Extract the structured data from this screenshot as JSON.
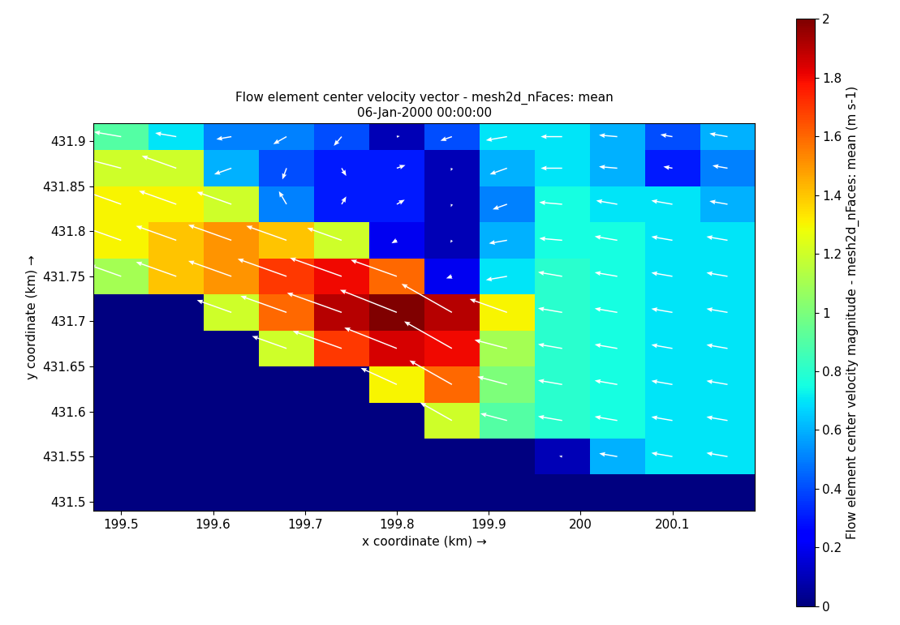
{
  "chart_data": {
    "type": "heatmap",
    "title": "Flow element center velocity vector - mesh2d_nFaces: mean",
    "subtitle": "06-Jan-2000 00:00:00",
    "x_label": "x coordinate (km) →",
    "y_label": "y coordinate (km) →",
    "colorbar_label": "Flow element center velocity magnitude - mesh2d_nFaces: mean (m s-1)",
    "xlim": [
      199.47,
      200.19
    ],
    "ylim": [
      431.49,
      431.92
    ],
    "xticks": [
      199.5,
      199.6,
      199.7,
      199.8,
      199.9,
      200,
      200.1
    ],
    "yticks": [
      431.5,
      431.55,
      431.6,
      431.65,
      431.7,
      431.75,
      431.8,
      431.85,
      431.9
    ],
    "colorbar_range": [
      0,
      2
    ],
    "colorbar_ticks": [
      0,
      0.2,
      0.4,
      0.6,
      0.8,
      1,
      1.2,
      1.4,
      1.6,
      1.8,
      2
    ],
    "x_edges": [
      199.47,
      199.53,
      199.59,
      199.65,
      199.71,
      199.77,
      199.83,
      199.89,
      199.95,
      200.01,
      200.07,
      200.13,
      200.19
    ],
    "y_edges": [
      431.49,
      431.53,
      431.57,
      431.61,
      431.65,
      431.69,
      431.73,
      431.77,
      431.81,
      431.85,
      431.89,
      431.92
    ],
    "values": [
      [
        0,
        0,
        0,
        0,
        0,
        0,
        0,
        0,
        0,
        0,
        0,
        0
      ],
      [
        0,
        0,
        0,
        0,
        0,
        0,
        0,
        0,
        0.1,
        0.6,
        0.7,
        0.7
      ],
      [
        0,
        0,
        0,
        0,
        0,
        0,
        1.2,
        0.9,
        0.8,
        0.75,
        0.7,
        0.7
      ],
      [
        0,
        0,
        0,
        0,
        0,
        1.3,
        1.6,
        1.0,
        0.8,
        0.75,
        0.7,
        0.7
      ],
      [
        0,
        0,
        0,
        1.2,
        1.7,
        1.85,
        1.8,
        1.1,
        0.8,
        0.75,
        0.7,
        0.7
      ],
      [
        0,
        0,
        1.2,
        1.6,
        1.9,
        2.0,
        1.9,
        1.3,
        0.8,
        0.75,
        0.7,
        0.7
      ],
      [
        1.1,
        1.4,
        1.5,
        1.7,
        1.8,
        1.6,
        0.2,
        0.7,
        0.8,
        0.75,
        0.7,
        0.7
      ],
      [
        1.3,
        1.4,
        1.5,
        1.4,
        1.2,
        0.2,
        0.1,
        0.6,
        0.75,
        0.75,
        0.7,
        0.7
      ],
      [
        1.3,
        1.3,
        1.2,
        0.5,
        0.3,
        0.3,
        0.1,
        0.5,
        0.75,
        0.7,
        0.7,
        0.6
      ],
      [
        1.2,
        1.2,
        0.6,
        0.4,
        0.3,
        0.3,
        0.1,
        0.6,
        0.7,
        0.6,
        0.3,
        0.5
      ],
      [
        0.9,
        0.7,
        0.5,
        0.5,
        0.4,
        0.1,
        0.4,
        0.7,
        0.7,
        0.6,
        0.4,
        0.6
      ]
    ],
    "direction": [
      [
        180,
        180,
        180,
        180,
        180,
        180,
        180,
        180,
        180,
        180,
        180,
        180
      ],
      [
        180,
        180,
        180,
        180,
        180,
        180,
        180,
        180,
        170,
        170,
        170,
        170
      ],
      [
        180,
        180,
        180,
        180,
        180,
        180,
        150,
        165,
        170,
        170,
        170,
        170
      ],
      [
        180,
        180,
        180,
        180,
        180,
        155,
        150,
        165,
        170,
        170,
        170,
        170
      ],
      [
        180,
        180,
        180,
        160,
        160,
        158,
        150,
        165,
        170,
        170,
        170,
        170
      ],
      [
        180,
        180,
        160,
        160,
        160,
        158,
        150,
        160,
        170,
        170,
        170,
        170
      ],
      [
        160,
        160,
        160,
        160,
        160,
        160,
        200,
        190,
        170,
        170,
        170,
        170
      ],
      [
        160,
        160,
        160,
        160,
        160,
        210,
        240,
        190,
        175,
        170,
        170,
        170
      ],
      [
        160,
        160,
        160,
        120,
        60,
        30,
        250,
        200,
        175,
        170,
        170,
        170
      ],
      [
        165,
        160,
        200,
        250,
        300,
        20,
        250,
        200,
        180,
        175,
        170,
        170
      ],
      [
        170,
        170,
        190,
        210,
        230,
        10,
        200,
        190,
        180,
        175,
        170,
        170
      ]
    ]
  }
}
